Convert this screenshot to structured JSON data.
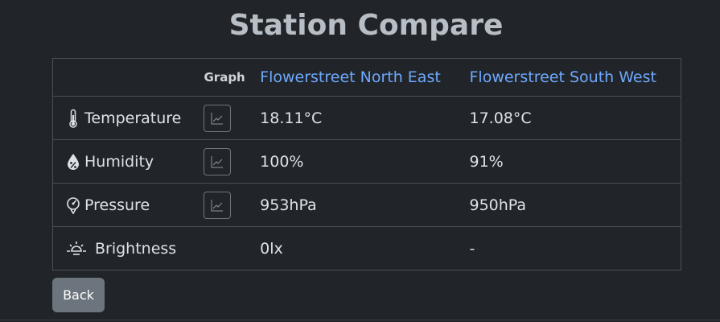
{
  "page": {
    "title": "Station Compare"
  },
  "table": {
    "graph_header": "Graph",
    "stations": [
      {
        "name": "Flowerstreet North East"
      },
      {
        "name": "Flowerstreet South West"
      }
    ],
    "rows": [
      {
        "label": "Temperature",
        "icon": "thermometer-icon",
        "has_graph": true,
        "values": [
          "18.11°C",
          "17.08°C"
        ]
      },
      {
        "label": "Humidity",
        "icon": "humidity-drop-icon",
        "has_graph": true,
        "values": [
          "100%",
          "91%"
        ]
      },
      {
        "label": "Pressure",
        "icon": "pressure-gauge-icon",
        "has_graph": true,
        "values": [
          "953hPa",
          "950hPa"
        ]
      },
      {
        "label": "Brightness",
        "icon": "sun-icon",
        "has_graph": false,
        "values": [
          "0lx",
          "-"
        ]
      }
    ]
  },
  "actions": {
    "back_label": "Back"
  },
  "colors": {
    "background": "#212529",
    "link": "#6ea8fe",
    "button": "#6c757d",
    "border": "#495057"
  }
}
